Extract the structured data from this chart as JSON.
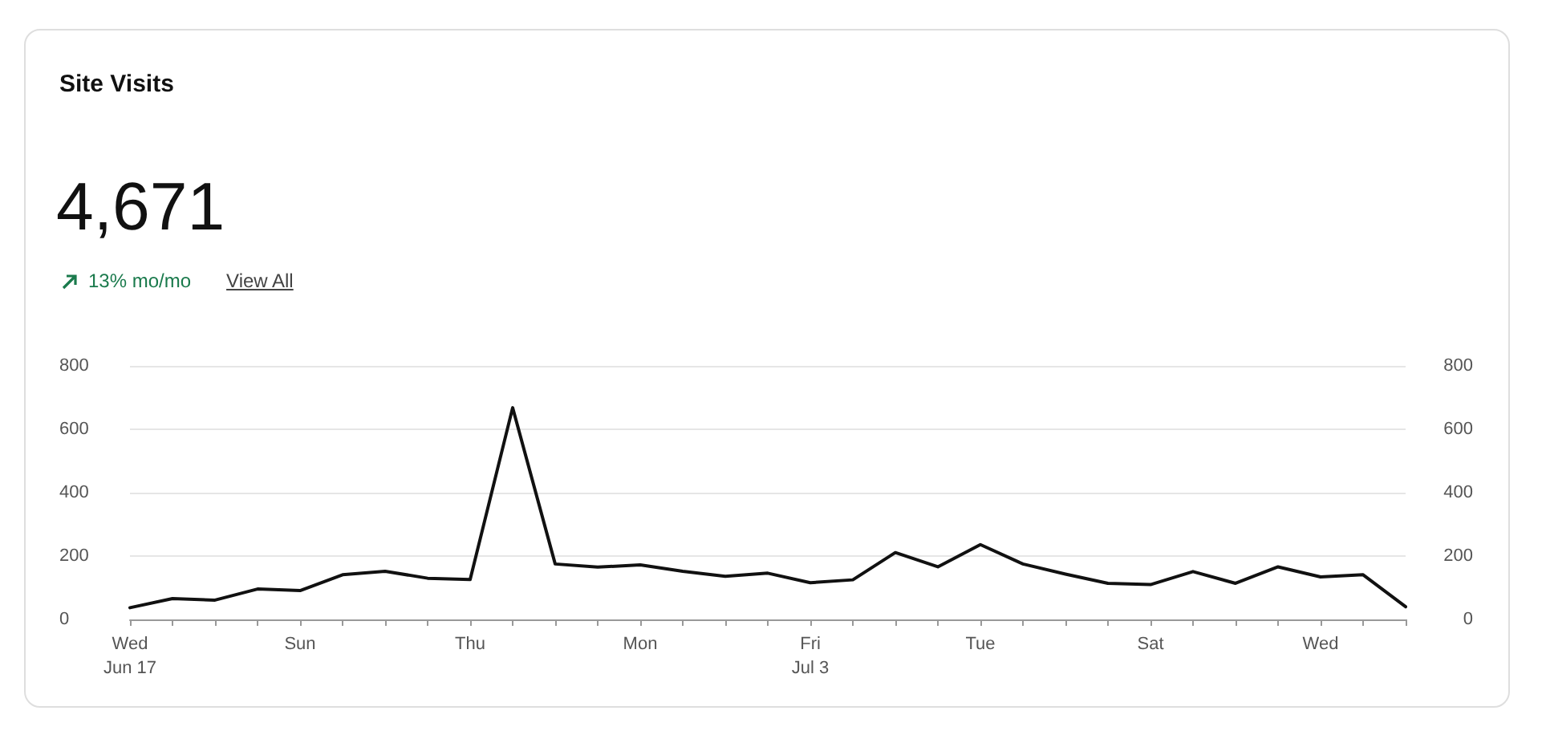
{
  "chart_data": {
    "type": "line",
    "title": "Site Visits",
    "annotations": [
      "4,671",
      "13% mo/mo",
      "View All"
    ],
    "categories": [
      "Wed\nJun 17",
      null,
      null,
      null,
      "Sun",
      null,
      null,
      null,
      "Thu",
      null,
      null,
      null,
      "Mon",
      null,
      null,
      null,
      "Fri\nJul 3",
      null,
      null,
      null,
      "Tue",
      null,
      null,
      null,
      "Sat",
      null,
      null,
      null,
      "Wed",
      null,
      null
    ],
    "series": [
      {
        "color": "#111111",
        "values": [
          37,
          66,
          61,
          96,
          91,
          141,
          152,
          130,
          126,
          668,
          175,
          165,
          172,
          152,
          136,
          146,
          116,
          125,
          211,
          166,
          236,
          175,
          143,
          114,
          110,
          151,
          114,
          166,
          134,
          141,
          40
        ]
      }
    ],
    "ylim": [
      0,
      800
    ],
    "yticks": [
      0,
      200,
      400,
      600,
      800
    ],
    "y2lim": [
      0,
      800
    ],
    "y2ticks": [
      0,
      200,
      400,
      600,
      800
    ],
    "grid": "y",
    "marker": "none",
    "line_style": "solid"
  }
}
